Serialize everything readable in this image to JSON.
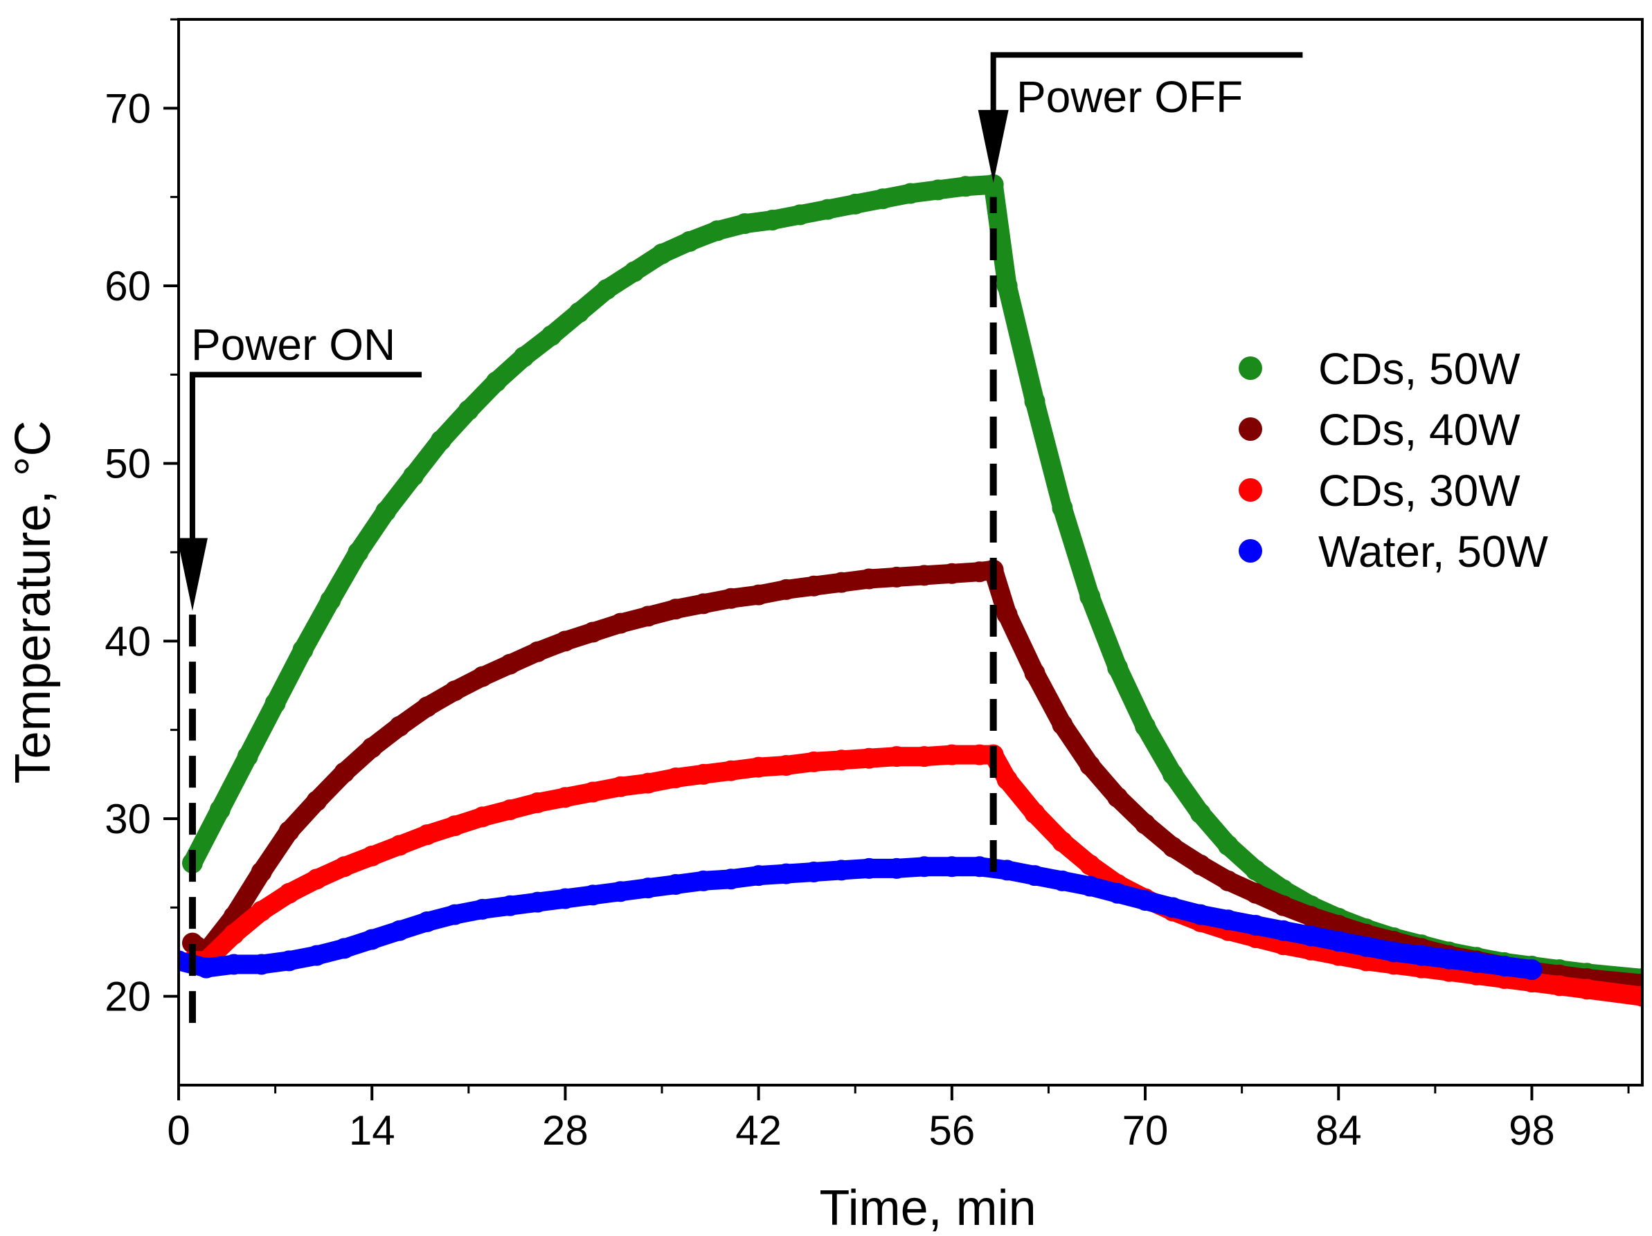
{
  "chart_data": {
    "type": "scatter",
    "xlabel": "Time, min",
    "ylabel": "Temperature, °C",
    "xlim": [
      0,
      106
    ],
    "ylim": [
      15,
      75
    ],
    "xticks": [
      0,
      14,
      28,
      42,
      56,
      70,
      84,
      98
    ],
    "yticks": [
      20,
      30,
      40,
      50,
      60,
      70
    ],
    "grid": false,
    "legend_position": "right",
    "power_on_time": 1,
    "power_off_time": 59,
    "annotations": {
      "power_on": "Power ON",
      "power_off": "Power OFF"
    },
    "series": [
      {
        "name": "CDs, 50W",
        "color": "#1a8a1a",
        "x": [
          1,
          3,
          5,
          7,
          9,
          11,
          13,
          15,
          17,
          19,
          21,
          23,
          25,
          27,
          29,
          31,
          33,
          35,
          37,
          39,
          41,
          43,
          45,
          47,
          49,
          51,
          53,
          55,
          57,
          59,
          60,
          62,
          64,
          66,
          68,
          70,
          72,
          74,
          76,
          78,
          80,
          82,
          84,
          86,
          88,
          90,
          92,
          94,
          96,
          98,
          100,
          102,
          106
        ],
        "y": [
          27.5,
          30.5,
          33.5,
          36.5,
          39.5,
          42.3,
          45,
          47.3,
          49.3,
          51.3,
          53,
          54.6,
          56,
          57.2,
          58.5,
          59.8,
          60.8,
          61.8,
          62.5,
          63.1,
          63.5,
          63.7,
          64,
          64.3,
          64.6,
          64.9,
          65.2,
          65.4,
          65.6,
          65.7,
          60,
          53.5,
          47.5,
          42.5,
          38.5,
          35.2,
          32.5,
          30.3,
          28.5,
          27.1,
          26,
          25.1,
          24.4,
          23.8,
          23.3,
          22.9,
          22.5,
          22.2,
          21.9,
          21.7,
          21.5,
          21.3,
          21
        ]
      },
      {
        "name": "CDs, 40W",
        "color": "#800000",
        "x": [
          1,
          2,
          4,
          6,
          8,
          10,
          12,
          14,
          16,
          18,
          20,
          22,
          24,
          26,
          28,
          30,
          32,
          34,
          36,
          38,
          40,
          42,
          44,
          46,
          48,
          50,
          52,
          54,
          56,
          58,
          59,
          60,
          62,
          64,
          66,
          68,
          70,
          72,
          74,
          76,
          78,
          80,
          82,
          84,
          86,
          88,
          90,
          92,
          94,
          96,
          98,
          100,
          102,
          106
        ],
        "y": [
          23,
          22.5,
          24.5,
          27,
          29.3,
          31,
          32.6,
          34,
          35.2,
          36.3,
          37.2,
          38,
          38.7,
          39.4,
          40,
          40.5,
          41,
          41.4,
          41.8,
          42.1,
          42.4,
          42.6,
          42.9,
          43.1,
          43.3,
          43.5,
          43.6,
          43.7,
          43.8,
          43.9,
          44,
          41.5,
          38.2,
          35.3,
          33,
          31.2,
          29.7,
          28.4,
          27.4,
          26.5,
          25.8,
          25.1,
          24.5,
          24,
          23.5,
          23.1,
          22.7,
          22.3,
          22,
          21.7,
          21.4,
          21.2,
          21,
          20.7
        ]
      },
      {
        "name": "CDs, 30W",
        "color": "#ff0000",
        "x": [
          1,
          2,
          4,
          6,
          8,
          10,
          12,
          14,
          16,
          18,
          20,
          22,
          24,
          26,
          28,
          30,
          32,
          34,
          36,
          38,
          40,
          42,
          44,
          46,
          48,
          50,
          52,
          54,
          56,
          58,
          59,
          60,
          62,
          64,
          66,
          68,
          70,
          72,
          74,
          76,
          78,
          80,
          82,
          84,
          86,
          88,
          90,
          92,
          94,
          96,
          98,
          100,
          102,
          106
        ],
        "y": [
          22,
          22,
          23.5,
          24.8,
          25.8,
          26.6,
          27.3,
          27.9,
          28.5,
          29.1,
          29.6,
          30.1,
          30.5,
          30.9,
          31.2,
          31.5,
          31.8,
          32,
          32.3,
          32.5,
          32.7,
          32.9,
          33,
          33.2,
          33.3,
          33.4,
          33.5,
          33.5,
          33.6,
          33.6,
          33.6,
          32.2,
          30.3,
          28.7,
          27.4,
          26.3,
          25.5,
          24.8,
          24.2,
          23.7,
          23.3,
          22.9,
          22.6,
          22.3,
          22,
          21.8,
          21.6,
          21.4,
          21.2,
          21,
          20.8,
          20.6,
          20.4,
          20
        ]
      },
      {
        "name": "Water, 50W",
        "color": "#0000ff",
        "x": [
          0,
          2,
          4,
          6,
          8,
          10,
          12,
          14,
          16,
          18,
          20,
          22,
          24,
          26,
          28,
          30,
          32,
          34,
          36,
          38,
          40,
          42,
          44,
          46,
          48,
          50,
          52,
          54,
          56,
          58,
          60,
          62,
          64,
          66,
          68,
          70,
          72,
          74,
          76,
          78,
          80,
          82,
          84,
          86,
          88,
          90,
          92,
          94,
          96,
          98
        ],
        "y": [
          22,
          21.6,
          21.8,
          21.8,
          22,
          22.3,
          22.7,
          23.2,
          23.7,
          24.2,
          24.6,
          24.9,
          25.1,
          25.3,
          25.5,
          25.7,
          25.9,
          26.1,
          26.3,
          26.5,
          26.6,
          26.8,
          26.9,
          27,
          27.1,
          27.2,
          27.2,
          27.3,
          27.3,
          27.3,
          27.1,
          26.8,
          26.5,
          26.2,
          25.8,
          25.4,
          25,
          24.6,
          24.3,
          24,
          23.7,
          23.4,
          23.1,
          22.8,
          22.5,
          22.3,
          22.1,
          21.9,
          21.7,
          21.5
        ]
      }
    ]
  }
}
